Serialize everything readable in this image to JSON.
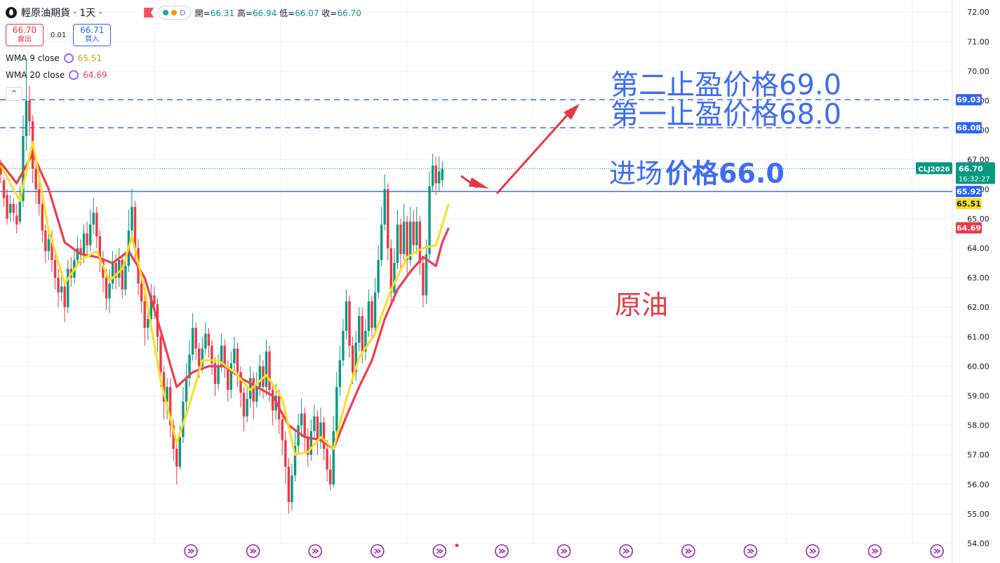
{
  "header": {
    "symbol_title": "輕原油期貨 · 1天 ·",
    "pill_label": "D",
    "ohlc": {
      "open_label": "開=",
      "open": "66.31",
      "high_label": "高=",
      "high": "66.94",
      "low_label": "低=",
      "low": "66.07",
      "close_label": "收=",
      "close": "66.70"
    }
  },
  "trade": {
    "sell_price": "66.70",
    "sell_label": "賣出",
    "spread": "0.01",
    "buy_price": "66.71",
    "buy_label": "買入"
  },
  "indicators": [
    {
      "label": "WMA 9 close",
      "value": "65.51",
      "color": "#f7e01e"
    },
    {
      "label": "WMA 20 close",
      "value": "64.69",
      "color": "#ef3d50"
    }
  ],
  "colors": {
    "up": "#089981",
    "down": "#f23645",
    "wma9": "#f7e01e",
    "wma20": "#ef3d50",
    "accent_blue": "#2962ff",
    "annotation_blue": "#3d6df0",
    "annotation_red": "#e63946"
  },
  "chart_data": {
    "type": "candlestick",
    "y_axis": {
      "range": [
        54.0,
        72.0
      ],
      "ticks": [
        "72.00",
        "71.00",
        "70.00",
        "69.00",
        "68.00",
        "67.00",
        "66.00",
        "65.00",
        "64.00",
        "63.00",
        "62.00",
        "61.00",
        "60.00",
        "59.00",
        "58.00",
        "57.00",
        "56.00",
        "55.00",
        "54.00"
      ]
    },
    "grid": true,
    "candles": [
      [
        66.9,
        66.5,
        67.0,
        66.2
      ],
      [
        66.3,
        65.7,
        66.4,
        65.4
      ],
      [
        65.8,
        65.0,
        66.0,
        64.8
      ],
      [
        65.2,
        65.5,
        65.8,
        64.9
      ],
      [
        65.5,
        65.2,
        65.7,
        64.9
      ],
      [
        65.1,
        64.8,
        65.5,
        64.5
      ],
      [
        64.9,
        65.7,
        66.1,
        64.8
      ],
      [
        65.6,
        67.8,
        68.5,
        65.4
      ],
      [
        67.8,
        69.0,
        70.4,
        67.3
      ],
      [
        69.0,
        68.3,
        69.5,
        67.8
      ],
      [
        68.3,
        66.7,
        68.5,
        66.2
      ],
      [
        66.7,
        66.0,
        67.0,
        65.5
      ],
      [
        66.0,
        65.5,
        66.3,
        65.1
      ],
      [
        65.5,
        64.6,
        65.7,
        64.2
      ],
      [
        64.6,
        63.9,
        64.8,
        63.5
      ],
      [
        63.9,
        64.3,
        64.7,
        63.6
      ],
      [
        64.3,
        63.6,
        64.6,
        63.2
      ],
      [
        63.6,
        63.0,
        63.9,
        62.6
      ],
      [
        63.0,
        62.5,
        63.3,
        62.0
      ],
      [
        62.5,
        62.7,
        63.1,
        62.2
      ],
      [
        62.7,
        62.0,
        62.9,
        61.5
      ],
      [
        62.0,
        63.3,
        63.6,
        61.8
      ],
      [
        63.3,
        63.0,
        63.7,
        62.7
      ],
      [
        63.0,
        63.6,
        64.0,
        62.8
      ],
      [
        63.6,
        64.0,
        64.4,
        63.4
      ],
      [
        64.0,
        63.8,
        64.3,
        63.4
      ],
      [
        63.8,
        64.5,
        64.8,
        63.5
      ],
      [
        64.5,
        64.1,
        64.9,
        63.8
      ],
      [
        64.1,
        64.8,
        65.3,
        63.9
      ],
      [
        64.8,
        65.2,
        65.7,
        64.5
      ],
      [
        65.2,
        64.4,
        65.4,
        64.0
      ],
      [
        64.4,
        63.6,
        64.6,
        63.2
      ],
      [
        63.6,
        63.0,
        63.9,
        62.5
      ],
      [
        63.0,
        62.3,
        63.3,
        61.9
      ],
      [
        62.3,
        62.8,
        63.3,
        61.8
      ],
      [
        62.8,
        63.5,
        63.9,
        62.6
      ],
      [
        63.5,
        63.0,
        63.8,
        62.6
      ],
      [
        63.0,
        63.6,
        64.0,
        62.7
      ],
      [
        63.6,
        62.6,
        63.8,
        62.3
      ],
      [
        62.6,
        63.4,
        63.8,
        62.4
      ],
      [
        63.4,
        64.6,
        65.3,
        63.2
      ],
      [
        64.6,
        65.4,
        66.0,
        64.3
      ],
      [
        65.4,
        64.0,
        65.6,
        63.6
      ],
      [
        64.0,
        62.8,
        64.3,
        62.4
      ],
      [
        62.8,
        62.2,
        63.1,
        61.8
      ],
      [
        62.2,
        61.3,
        62.5,
        60.7
      ],
      [
        61.3,
        61.6,
        62.0,
        60.9
      ],
      [
        61.6,
        62.4,
        62.8,
        61.3
      ],
      [
        62.4,
        62.1,
        62.7,
        61.6
      ],
      [
        62.1,
        61.0,
        62.3,
        60.5
      ],
      [
        61.0,
        59.8,
        61.2,
        59.3
      ],
      [
        59.8,
        58.8,
        60.0,
        58.2
      ],
      [
        58.8,
        59.3,
        59.6,
        58.2
      ],
      [
        59.3,
        58.0,
        59.6,
        57.6
      ],
      [
        58.0,
        57.2,
        58.2,
        56.8
      ],
      [
        57.2,
        56.6,
        57.5,
        56.0
      ],
      [
        56.6,
        57.6,
        58.0,
        56.5
      ],
      [
        57.6,
        58.8,
        59.3,
        57.4
      ],
      [
        58.8,
        59.6,
        60.1,
        58.5
      ],
      [
        59.6,
        60.4,
        60.9,
        59.3
      ],
      [
        60.4,
        61.3,
        61.8,
        60.2
      ],
      [
        61.3,
        60.6,
        61.5,
        60.2
      ],
      [
        60.6,
        60.0,
        60.8,
        59.6
      ],
      [
        60.0,
        60.6,
        61.0,
        59.8
      ],
      [
        60.6,
        61.1,
        61.5,
        60.4
      ],
      [
        61.1,
        60.7,
        61.3,
        60.3
      ],
      [
        60.7,
        60.1,
        60.9,
        59.7
      ],
      [
        60.1,
        59.4,
        60.3,
        59.0
      ],
      [
        59.4,
        60.0,
        60.4,
        59.2
      ],
      [
        60.0,
        60.7,
        61.1,
        59.8
      ],
      [
        60.7,
        60.0,
        60.9,
        59.6
      ],
      [
        60.0,
        59.2,
        60.2,
        58.8
      ],
      [
        59.2,
        60.1,
        60.5,
        58.9
      ],
      [
        60.1,
        60.6,
        61.0,
        59.8
      ],
      [
        60.6,
        59.8,
        60.8,
        59.3
      ],
      [
        59.8,
        59.1,
        60.0,
        58.6
      ],
      [
        59.1,
        58.3,
        59.3,
        57.8
      ],
      [
        58.3,
        58.9,
        59.3,
        58.1
      ],
      [
        58.9,
        59.6,
        60.0,
        58.6
      ],
      [
        59.6,
        58.8,
        59.8,
        58.2
      ],
      [
        58.8,
        59.3,
        59.8,
        58.6
      ],
      [
        59.3,
        60.0,
        60.4,
        59.0
      ],
      [
        60.0,
        59.3,
        60.2,
        58.9
      ],
      [
        59.3,
        60.5,
        60.9,
        59.0
      ],
      [
        60.5,
        59.2,
        60.7,
        58.8
      ],
      [
        59.2,
        58.5,
        59.4,
        58.0
      ],
      [
        58.5,
        59.0,
        59.4,
        58.2
      ],
      [
        59.0,
        58.2,
        59.2,
        57.7
      ],
      [
        58.2,
        57.5,
        58.4,
        57.0
      ],
      [
        57.5,
        56.6,
        57.8,
        56.0
      ],
      [
        56.6,
        55.4,
        56.9,
        55.0
      ],
      [
        55.4,
        56.3,
        56.7,
        55.1
      ],
      [
        56.3,
        57.3,
        57.8,
        56.1
      ],
      [
        57.3,
        58.0,
        58.4,
        57.0
      ],
      [
        58.0,
        58.4,
        58.9,
        57.6
      ],
      [
        58.4,
        57.6,
        58.6,
        57.1
      ],
      [
        57.6,
        57.0,
        57.9,
        56.6
      ],
      [
        57.0,
        57.8,
        58.2,
        56.8
      ],
      [
        57.8,
        58.3,
        58.7,
        57.5
      ],
      [
        58.3,
        57.5,
        58.5,
        57.0
      ],
      [
        57.5,
        58.1,
        58.6,
        57.2
      ],
      [
        58.1,
        57.2,
        58.3,
        56.8
      ],
      [
        57.2,
        56.5,
        57.5,
        56.1
      ],
      [
        56.5,
        56.0,
        57.0,
        55.8
      ],
      [
        56.0,
        57.8,
        58.3,
        55.9
      ],
      [
        57.8,
        59.3,
        59.8,
        57.6
      ],
      [
        59.3,
        60.2,
        60.7,
        59.0
      ],
      [
        60.2,
        61.2,
        61.6,
        60.0
      ],
      [
        61.2,
        62.2,
        62.6,
        60.9
      ],
      [
        62.2,
        60.7,
        62.4,
        60.3
      ],
      [
        60.7,
        59.8,
        61.0,
        59.4
      ],
      [
        59.8,
        60.8,
        61.2,
        59.5
      ],
      [
        60.8,
        61.7,
        62.0,
        60.5
      ],
      [
        61.7,
        60.5,
        62.0,
        60.1
      ],
      [
        60.5,
        61.2,
        61.6,
        60.2
      ],
      [
        61.2,
        62.2,
        62.6,
        61.0
      ],
      [
        62.2,
        61.3,
        62.4,
        60.9
      ],
      [
        61.3,
        62.5,
        63.0,
        61.1
      ],
      [
        62.5,
        63.6,
        64.1,
        62.3
      ],
      [
        63.6,
        64.8,
        65.4,
        63.4
      ],
      [
        64.8,
        66.0,
        66.5,
        64.6
      ],
      [
        66.0,
        64.0,
        66.2,
        63.6
      ],
      [
        64.0,
        62.5,
        64.3,
        62.1
      ],
      [
        62.5,
        63.5,
        64.0,
        62.2
      ],
      [
        63.5,
        64.8,
        65.3,
        63.3
      ],
      [
        64.8,
        63.8,
        65.0,
        63.3
      ],
      [
        63.8,
        64.9,
        65.5,
        63.6
      ],
      [
        64.9,
        63.6,
        65.1,
        63.1
      ],
      [
        63.6,
        64.9,
        65.4,
        63.4
      ],
      [
        64.9,
        64.1,
        65.3,
        63.8
      ],
      [
        64.1,
        64.9,
        65.4,
        63.8
      ],
      [
        64.9,
        63.5,
        65.1,
        63.1
      ],
      [
        63.5,
        62.4,
        63.7,
        62.0
      ],
      [
        62.4,
        63.8,
        64.3,
        62.1
      ],
      [
        63.8,
        66.1,
        66.6,
        63.6
      ],
      [
        66.1,
        66.8,
        67.2,
        65.9
      ],
      [
        66.8,
        66.2,
        67.1,
        65.8
      ],
      [
        66.2,
        66.6,
        67.1,
        65.9
      ],
      [
        66.31,
        66.7,
        66.94,
        66.07
      ]
    ],
    "wma9": [
      [
        0,
        66.8
      ],
      [
        6,
        65.6
      ],
      [
        10,
        67.6
      ],
      [
        15,
        64.6
      ],
      [
        20,
        62.8
      ],
      [
        25,
        63.6
      ],
      [
        30,
        63.9
      ],
      [
        34,
        62.9
      ],
      [
        38,
        63.3
      ],
      [
        41,
        64.4
      ],
      [
        45,
        62.6
      ],
      [
        50,
        59.5
      ],
      [
        55,
        57.4
      ],
      [
        59,
        58.7
      ],
      [
        63,
        60.2
      ],
      [
        68,
        60.2
      ],
      [
        73,
        59.8
      ],
      [
        78,
        59.2
      ],
      [
        83,
        59.7
      ],
      [
        88,
        58.9
      ],
      [
        92,
        57.0
      ],
      [
        96,
        57.1
      ],
      [
        100,
        57.6
      ],
      [
        104,
        57.2
      ],
      [
        108,
        58.9
      ],
      [
        112,
        60.3
      ],
      [
        117,
        61.1
      ],
      [
        122,
        62.6
      ],
      [
        127,
        63.7
      ],
      [
        132,
        64.0
      ],
      [
        136,
        64.1
      ],
      [
        140,
        65.51
      ]
    ],
    "wma20": [
      [
        0,
        66.9
      ],
      [
        5,
        66.2
      ],
      [
        10,
        67.2
      ],
      [
        15,
        66.0
      ],
      [
        20,
        64.2
      ],
      [
        25,
        63.8
      ],
      [
        30,
        63.7
      ],
      [
        35,
        63.5
      ],
      [
        40,
        63.9
      ],
      [
        45,
        63.0
      ],
      [
        50,
        61.2
      ],
      [
        55,
        59.3
      ],
      [
        60,
        59.8
      ],
      [
        65,
        60.0
      ],
      [
        70,
        60.0
      ],
      [
        75,
        59.6
      ],
      [
        80,
        59.3
      ],
      [
        85,
        59.0
      ],
      [
        90,
        58.0
      ],
      [
        95,
        57.6
      ],
      [
        100,
        57.5
      ],
      [
        104,
        57.2
      ],
      [
        108,
        58.3
      ],
      [
        112,
        59.3
      ],
      [
        116,
        60.2
      ],
      [
        120,
        61.6
      ],
      [
        124,
        62.6
      ],
      [
        128,
        63.2
      ],
      [
        132,
        63.7
      ],
      [
        136,
        63.4
      ],
      [
        138,
        64.2
      ],
      [
        140,
        64.69
      ]
    ],
    "price_lines": [
      {
        "value": 69.03,
        "label": "69.03",
        "style": "dashed",
        "color": "#2962ff"
      },
      {
        "value": 68.08,
        "label": "68.08",
        "style": "dashed",
        "color": "#2962ff"
      },
      {
        "value": 65.92,
        "label": "65.92",
        "style": "solid",
        "color": "#2962ff"
      }
    ],
    "last_price": {
      "value": 66.7,
      "symbol": "CLJ2026",
      "label": "66.70",
      "countdown": "16:32:27",
      "color": "#089981"
    },
    "axis_badges": [
      {
        "value": 65.51,
        "label": "65.51",
        "color": "#f7e01e",
        "text_color": "#131722"
      },
      {
        "value": 64.69,
        "label": "64.69",
        "color": "#f23645",
        "text_color": "#ffffff"
      }
    ],
    "annotations": [
      {
        "text": "第二止盈价格69.0",
        "color": "#3d6df0",
        "price": 69.55
      },
      {
        "text": "第一止盈价格68.0",
        "color": "#3d6df0",
        "price": 68.55
      },
      {
        "text": "进场",
        "color": "#3d6df0",
        "price": 66.55
      },
      {
        "text": "价格66.0",
        "color": "#3d6df0",
        "price": 66.55
      },
      {
        "text": "原油",
        "color": "#e63946",
        "price": 62.1
      }
    ],
    "bottom_markers": 13
  }
}
